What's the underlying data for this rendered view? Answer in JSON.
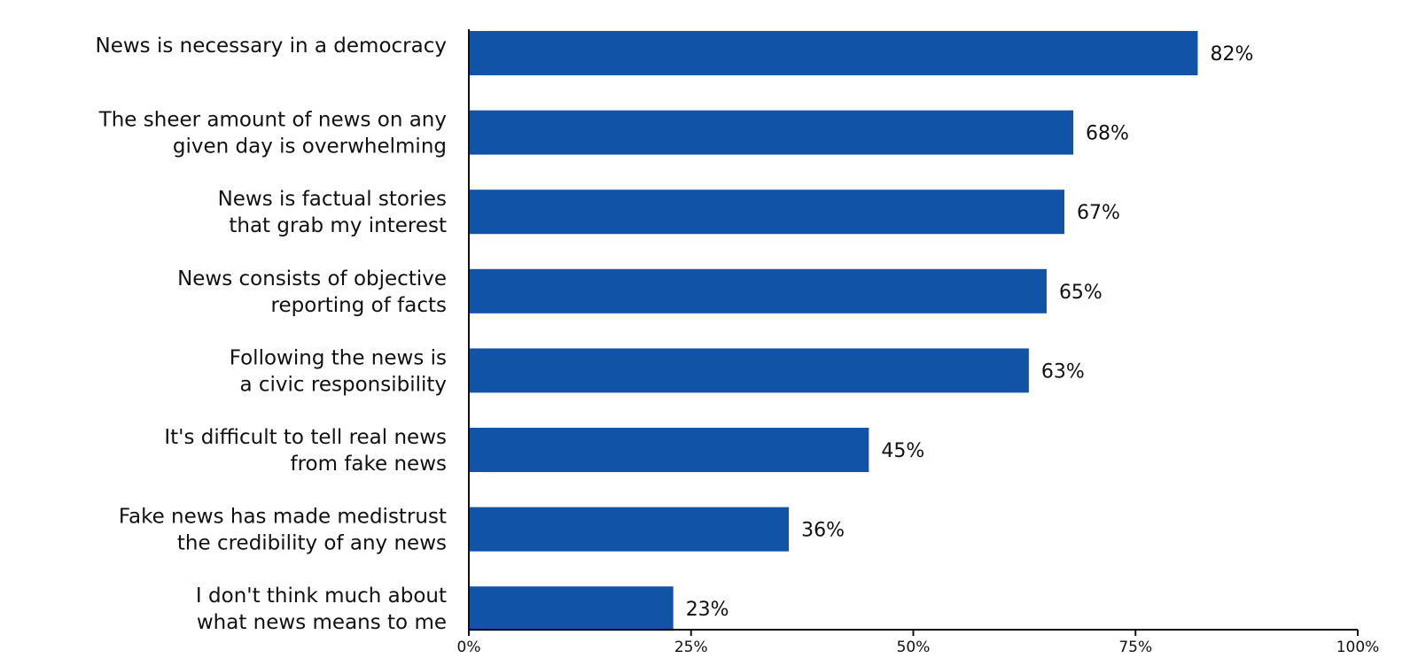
{
  "chart_data": {
    "type": "bar",
    "orientation": "horizontal",
    "title": "",
    "xlabel": "",
    "ylabel": "",
    "bar_color": "#1153a6",
    "axis_color": "#111111",
    "xlim": [
      0,
      100
    ],
    "grid": false,
    "legend": "none",
    "x_ticks": [
      {
        "value": 0,
        "label": "0%"
      },
      {
        "value": 25,
        "label": "25%"
      },
      {
        "value": 50,
        "label": "50%"
      },
      {
        "value": 75,
        "label": "75%"
      },
      {
        "value": 100,
        "label": "100%"
      }
    ],
    "categories": [
      "News is necessary in a democracy",
      "The sheer amount of news on any given day is overwhelming",
      "News is factual stories that grab my interest",
      "News consists of objective reporting of facts",
      "Following the news is a civic responsibility",
      "It's difficult to tell real news from fake news",
      "Fake news has made medistrust the credibility of any news",
      "I don't think much about what news means to me"
    ],
    "category_lines": [
      [
        "News is necessary in a democracy"
      ],
      [
        "The sheer amount of news on any",
        "given day is overwhelming"
      ],
      [
        "News is factual stories",
        "that grab my interest"
      ],
      [
        "News consists of objective",
        "reporting of facts"
      ],
      [
        "Following the news is",
        "a civic responsibility"
      ],
      [
        "It's difficult to tell real news",
        "from fake news"
      ],
      [
        "Fake news has made medistrust",
        "the credibility of any news"
      ],
      [
        "I don't think much about",
        "what news means to me"
      ]
    ],
    "values": [
      82,
      68,
      67,
      65,
      63,
      45,
      36,
      23
    ],
    "value_labels": [
      "82%",
      "68%",
      "67%",
      "65%",
      "63%",
      "45%",
      "36%",
      "23%"
    ]
  }
}
